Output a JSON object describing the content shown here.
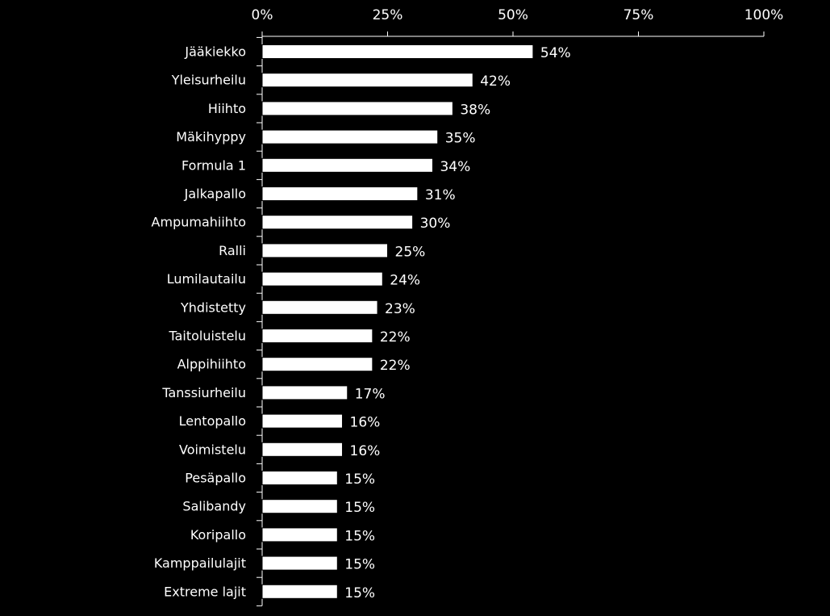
{
  "chart_data": {
    "type": "bar",
    "orientation": "horizontal",
    "categories": [
      "Jääkiekko",
      "Yleisurheilu",
      "Hiihto",
      "Mäkihyppy",
      "Formula 1",
      "Jalkapallo",
      "Ampumahiihto",
      "Ralli",
      "Lumilautailu",
      "Yhdistetty",
      "Taitoluistelu",
      "Alppihiihto",
      "Tanssiurheilu",
      "Lentopallo",
      "Voimistelu",
      "Pesäpallo",
      "Salibandy",
      "Koripallo",
      "Kamppailulajit",
      "Extreme lajit"
    ],
    "values": [
      54,
      42,
      38,
      35,
      34,
      31,
      30,
      25,
      24,
      23,
      22,
      22,
      17,
      16,
      16,
      15,
      15,
      15,
      15,
      15
    ],
    "value_labels": [
      "54%",
      "42%",
      "38%",
      "35%",
      "34%",
      "31%",
      "30%",
      "25%",
      "24%",
      "23%",
      "22%",
      "22%",
      "17%",
      "16%",
      "16%",
      "15%",
      "15%",
      "15%",
      "15%",
      "15%"
    ],
    "x_ticks": [
      0,
      25,
      50,
      75,
      100
    ],
    "x_tick_labels": [
      "0%",
      "25%",
      "50%",
      "75%",
      "100%"
    ],
    "xlim": [
      0,
      100
    ],
    "axis_position": "top",
    "title": "",
    "xlabel": "",
    "ylabel": "",
    "grid": false,
    "legend": false,
    "colors": {
      "background": "#000000",
      "bar_fill": "#ffffff",
      "bar_stroke": "#000000",
      "axis": "#ffffff",
      "text": "#ffffff"
    }
  }
}
